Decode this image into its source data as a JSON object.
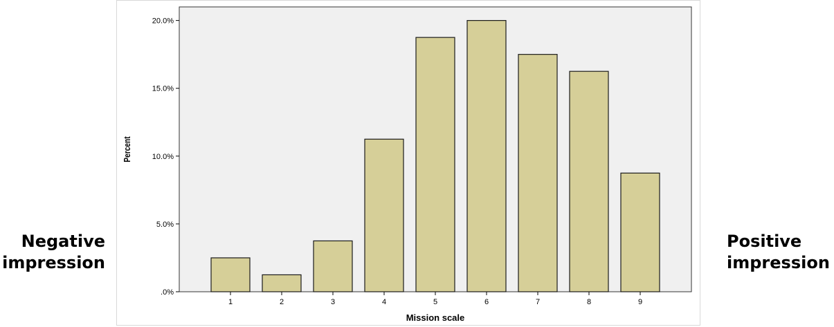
{
  "left_annotation": {
    "line1": "Negative",
    "line2": "impression"
  },
  "right_annotation": {
    "line1": "Positive",
    "line2": "impression"
  },
  "chart_data": {
    "type": "bar",
    "xlabel": "Mission scale",
    "ylabel": "Percent",
    "categories": [
      "1",
      "2",
      "3",
      "4",
      "5",
      "6",
      "7",
      "8",
      "9"
    ],
    "values": [
      2.5,
      1.25,
      3.75,
      11.25,
      18.75,
      20.0,
      17.5,
      16.25,
      8.75
    ],
    "ylim": [
      0,
      21
    ],
    "yticks": [
      0,
      5,
      10,
      15,
      20
    ],
    "ytick_labels": [
      ".0%",
      "5.0%",
      "10.0%",
      "15.0%",
      "20.0%"
    ],
    "grid": false,
    "legend": "none",
    "colors": {
      "bar_fill": "#d6cf98",
      "bar_stroke": "#1a1a1a",
      "plot_bg": "#f0f0f0"
    }
  }
}
